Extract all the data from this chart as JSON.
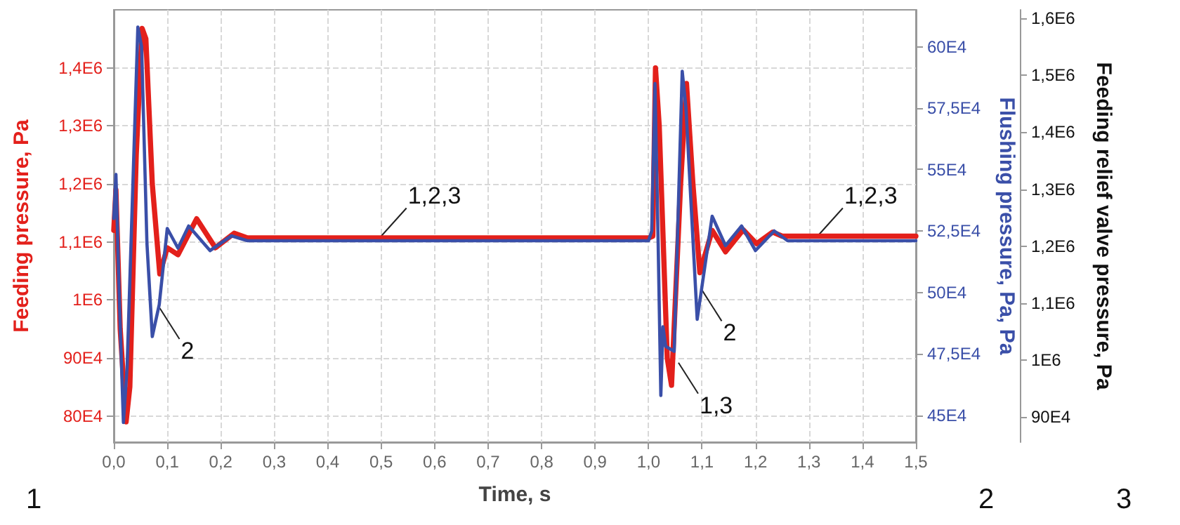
{
  "chart_data": {
    "type": "line",
    "xlabel": "Time, s",
    "ylabel": "Feeding pressure, Pa",
    "y2label": "Flushing pressure, Pa, Pa",
    "y3label": "Feeding relief valve pressure, Pa",
    "xlim": [
      0,
      1.5
    ],
    "xticks": [
      {
        "value": 0,
        "label": "0,0"
      },
      {
        "value": 0.1,
        "label": "0,1"
      },
      {
        "value": 0.2,
        "label": "0,2"
      },
      {
        "value": 0.3,
        "label": "0,3"
      },
      {
        "value": 0.4,
        "label": "0,4"
      },
      {
        "value": 0.5,
        "label": "0,5"
      },
      {
        "value": 0.6,
        "label": "0,6"
      },
      {
        "value": 0.7,
        "label": "0,7"
      },
      {
        "value": 0.8,
        "label": "0,8"
      },
      {
        "value": 0.9,
        "label": "0,9"
      },
      {
        "value": 1.0,
        "label": "1,0"
      },
      {
        "value": 1.1,
        "label": "1,1"
      },
      {
        "value": 1.2,
        "label": "1,2"
      },
      {
        "value": 1.3,
        "label": "1,3"
      },
      {
        "value": 1.4,
        "label": "1,4"
      },
      {
        "value": 1.5,
        "label": "1,5"
      }
    ],
    "ylim": [
      755000,
      1500000
    ],
    "yticks": [
      {
        "value": 800000,
        "label": "80E4"
      },
      {
        "value": 900000,
        "label": "90E4"
      },
      {
        "value": 1000000,
        "label": "1E6"
      },
      {
        "value": 1100000,
        "label": "1,1E6"
      },
      {
        "value": 1200000,
        "label": "1,2E6"
      },
      {
        "value": 1300000,
        "label": "1,3E6"
      },
      {
        "value": 1400000,
        "label": "1,4E6"
      }
    ],
    "y2lim": [
      439000,
      615000
    ],
    "y2ticks": [
      {
        "value": 450000,
        "label": "45E4"
      },
      {
        "value": 475000,
        "label": "47,5E4"
      },
      {
        "value": 500000,
        "label": "50E4"
      },
      {
        "value": 525000,
        "label": "52,5E4"
      },
      {
        "value": 550000,
        "label": "55E4"
      },
      {
        "value": 575000,
        "label": "57,5E4"
      },
      {
        "value": 600000,
        "label": "60E4"
      }
    ],
    "y3lim": [
      856000,
      1615000
    ],
    "y3ticks": [
      {
        "value": 900000,
        "label": "90E4"
      },
      {
        "value": 1000000,
        "label": "1E6"
      },
      {
        "value": 1100000,
        "label": "1,1E6"
      },
      {
        "value": 1200000,
        "label": "1,2E6"
      },
      {
        "value": 1300000,
        "label": "1,3E6"
      },
      {
        "value": 1400000,
        "label": "1,4E6"
      },
      {
        "value": 1500000,
        "label": "1,5E6"
      },
      {
        "value": 1600000,
        "label": "1,6E6"
      }
    ],
    "grid": true,
    "marker": "none",
    "line_style": "solid",
    "series": [
      {
        "color": "#e3201b",
        "x": [
          0,
          0.004,
          0.012,
          0.023,
          0.03,
          0.042,
          0.053,
          0.06,
          0.072,
          0.086,
          0.1,
          0.12,
          0.155,
          0.19,
          0.225,
          0.25,
          1.0,
          1.008,
          1.013,
          1.02,
          1.035,
          1.043,
          1.06,
          1.071,
          1.083,
          1.096,
          1.119,
          1.144,
          1.177,
          1.202,
          1.232,
          1.25,
          1.5
        ],
        "values": [
          1120000,
          1190000,
          950000,
          790000,
          850000,
          1250000,
          1468000,
          1450000,
          1200000,
          1045000,
          1090000,
          1078000,
          1140000,
          1090000,
          1115000,
          1107000,
          1107000,
          1110000,
          1400000,
          1300000,
          900000,
          853000,
          1200000,
          1373000,
          1200000,
          1047000,
          1120000,
          1083000,
          1121000,
          1097000,
          1117000,
          1110000,
          1110000
        ]
      },
      {
        "color": "#3a4fa8",
        "axis": "y2",
        "x": [
          0,
          0.004,
          0.01,
          0.018,
          0.025,
          0.045,
          0.052,
          0.062,
          0.072,
          0.085,
          0.1,
          0.12,
          0.14,
          0.18,
          0.22,
          0.25,
          1.0,
          1.006,
          1.012,
          1.018,
          1.023,
          1.027,
          1.032,
          1.048,
          1.063,
          1.07,
          1.091,
          1.119,
          1.144,
          1.174,
          1.2,
          1.235,
          1.26,
          1.5
        ],
        "values": [
          530000,
          548000,
          500000,
          447000,
          470000,
          608000,
          600000,
          520000,
          482000,
          495000,
          526000,
          518000,
          527000,
          517000,
          523000,
          521000,
          521000,
          525000,
          585000,
          520000,
          458000,
          486000,
          478000,
          476000,
          590000,
          575000,
          489000,
          531000,
          519000,
          527000,
          517000,
          525000,
          521000,
          521000
        ]
      }
    ],
    "annotations": [
      {
        "text": "1,2,3",
        "x": 0.5,
        "y": 1110000
      },
      {
        "text": "2",
        "x": 0.086,
        "y": 986000
      },
      {
        "text": "2",
        "x": 1.1,
        "y": 1017000
      },
      {
        "text": "1,3",
        "x": 1.056,
        "y": 892000
      },
      {
        "text": "1,2,3",
        "x": 1.316,
        "y": 1110000
      },
      "1",
      "2",
      "3"
    ]
  }
}
